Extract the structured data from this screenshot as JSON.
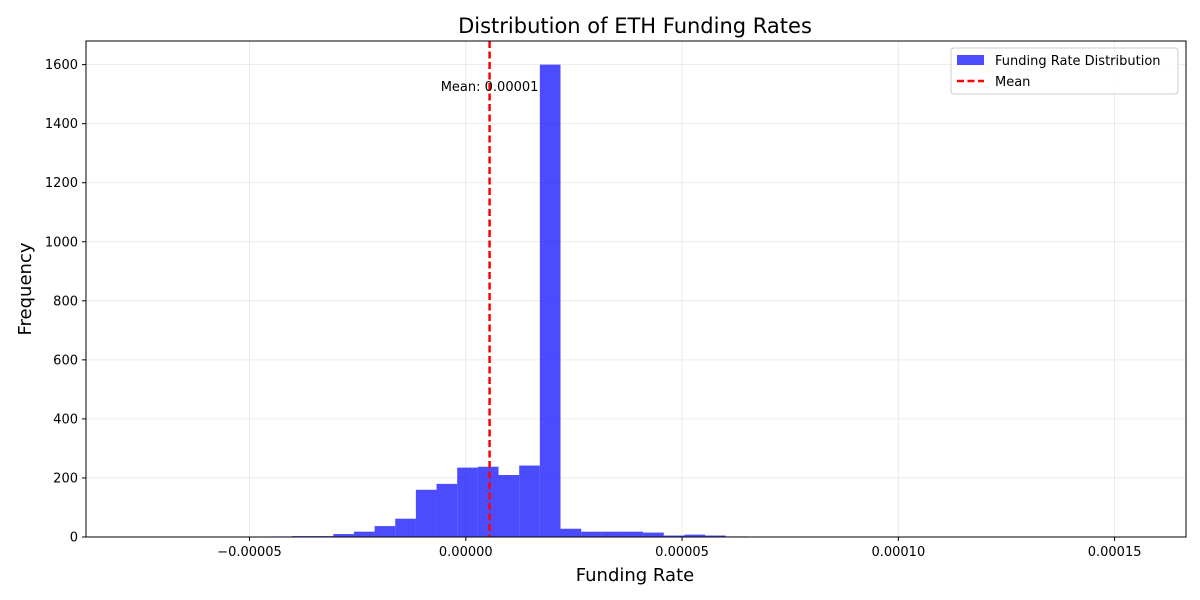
{
  "chart_data": {
    "type": "bar",
    "title": "Distribution of ETH Funding Rates",
    "xlabel": "Funding Rate",
    "ylabel": "Frequency",
    "xlim": [
      -8.78e-05,
      0.0001665
    ],
    "ylim": [
      0,
      1680
    ],
    "grid": true,
    "bar_color": "#0000ff",
    "bar_alpha": 0.7,
    "mean_color": "#ff0000",
    "x_ticks": [
      -5e-05,
      0.0,
      5e-05,
      0.0001,
      0.00015
    ],
    "x_tick_labels": [
      "−0.00005",
      "0.00000",
      "0.00005",
      "0.00010",
      "0.00015"
    ],
    "y_ticks": [
      0,
      200,
      400,
      600,
      800,
      1000,
      1200,
      1400,
      1600
    ],
    "y_tick_labels": [
      "0",
      "200",
      "400",
      "600",
      "800",
      "1000",
      "1200",
      "1400",
      "1600"
    ],
    "histogram": {
      "bin_start": -7.84e-05,
      "bin_width": 4.776e-06,
      "counts": [
        1,
        0,
        1,
        1,
        1,
        1,
        1,
        2,
        3,
        3,
        10,
        18,
        37,
        62,
        160,
        180,
        235,
        238,
        210,
        242,
        1600,
        28,
        18,
        18,
        18,
        15,
        5,
        8,
        5,
        2,
        1,
        1,
        1,
        0,
        1,
        0,
        1,
        1,
        1,
        0,
        0,
        0,
        0,
        1,
        0,
        0,
        0,
        0,
        0,
        1
      ]
    },
    "mean": 5.5e-06,
    "mean_label": "Mean: 0.00001",
    "legend": {
      "placement": "top-right",
      "entries": [
        "Funding Rate Distribution",
        "Mean"
      ]
    }
  }
}
